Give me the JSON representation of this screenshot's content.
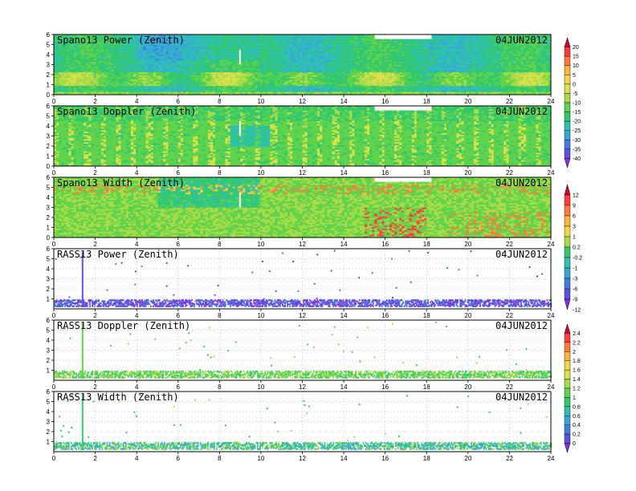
{
  "chart_data": [
    {
      "type": "heatmap",
      "title": "Spano13 Power (Zenith)",
      "date": "04JUN2012",
      "xlim": [
        0,
        24
      ],
      "ylim": [
        0,
        6
      ],
      "xticks": [
        "0",
        "2",
        "4",
        "6",
        "8",
        "10",
        "12",
        "14",
        "16",
        "18",
        "20",
        "22",
        "24"
      ],
      "yticks": [
        "0",
        "1",
        "2",
        "3",
        "4",
        "5",
        "6"
      ],
      "colorbar": "A",
      "field": "power"
    },
    {
      "type": "heatmap",
      "title": "Spano13 Doppler (Zenith)",
      "date": "04JUN2012",
      "xlim": [
        0,
        24
      ],
      "ylim": [
        0,
        6
      ],
      "xticks": [
        "0",
        "2",
        "4",
        "6",
        "8",
        "10",
        "12",
        "14",
        "16",
        "18",
        "20",
        "22",
        "24"
      ],
      "yticks": [
        "0",
        "1",
        "2",
        "3",
        "4",
        "5",
        "6"
      ],
      "colorbar": "A",
      "field": "doppler"
    },
    {
      "type": "heatmap",
      "title": "Spano13 Width (Zenith)",
      "date": "04JUN2012",
      "xlim": [
        0,
        24
      ],
      "ylim": [
        0,
        6
      ],
      "xticks": [
        "0",
        "2",
        "4",
        "6",
        "8",
        "10",
        "12",
        "14",
        "16",
        "18",
        "20",
        "22",
        "24"
      ],
      "yticks": [
        "0",
        "1",
        "2",
        "3",
        "4",
        "5",
        "6"
      ],
      "colorbar": "B",
      "field": "width"
    },
    {
      "type": "heatmap",
      "title": "RASS13 Power (Zenith)",
      "date": "04JUN2012",
      "xlim": [
        0,
        24
      ],
      "ylim": [
        0,
        6
      ],
      "xticks": [
        "0",
        "2",
        "4",
        "6",
        "8",
        "10",
        "12",
        "14",
        "16",
        "18",
        "20",
        "22",
        "24"
      ],
      "yticks": [
        "1",
        "2",
        "3",
        "4",
        "5",
        "6"
      ],
      "colorbar": "B",
      "field": "rass_power"
    },
    {
      "type": "heatmap",
      "title": "RASS13 Doppler (Zenith)",
      "date": "04JUN2012",
      "xlim": [
        0,
        24
      ],
      "ylim": [
        0,
        6
      ],
      "xticks": [
        "0",
        "2",
        "4",
        "6",
        "8",
        "10",
        "12",
        "14",
        "16",
        "18",
        "20",
        "22",
        "24"
      ],
      "yticks": [
        "1",
        "2",
        "3",
        "4",
        "5",
        "6"
      ],
      "colorbar": "C",
      "field": "rass_doppler"
    },
    {
      "type": "heatmap",
      "title": "RASS13 Width (Zenith)",
      "date": "04JUN2012",
      "xlim": [
        0,
        24
      ],
      "ylim": [
        0,
        6
      ],
      "xticks": [
        "0",
        "2",
        "4",
        "6",
        "8",
        "10",
        "12",
        "14",
        "16",
        "18",
        "20",
        "22",
        "24"
      ],
      "yticks": [
        "1",
        "2",
        "3",
        "4",
        "5",
        "6"
      ],
      "colorbar": "C",
      "field": "rass_width"
    }
  ],
  "colorbars": {
    "A": {
      "labels": [
        "20",
        "15",
        "10",
        "5",
        "0",
        "-5",
        "-10",
        "-15",
        "-20",
        "-25",
        "-30",
        "-35",
        "-40"
      ],
      "colors": [
        "#d6003a",
        "#ff3b3b",
        "#ff7a3a",
        "#ffb43a",
        "#f2d64a",
        "#d8e04a",
        "#a8dc46",
        "#5fd44a",
        "#33c96b",
        "#2cc1b1",
        "#34a8d6",
        "#3d7fe0",
        "#5b52e0",
        "#8a2fe0"
      ]
    },
    "B": {
      "labels": [
        "12",
        "9",
        "6",
        "3",
        "1",
        "0.2",
        "-0.2",
        "-1",
        "-3",
        "-6",
        "-9",
        "-12"
      ],
      "colors": [
        "#d6003a",
        "#ff3b3b",
        "#ff7a3a",
        "#ffb43a",
        "#f2d64a",
        "#a8dc46",
        "#33c96b",
        "#2cc1b1",
        "#34a8d6",
        "#3d7fe0",
        "#5b52e0",
        "#8a2fe0"
      ]
    },
    "C": {
      "labels": [
        "2.4",
        "2.2",
        "2",
        "1.8",
        "1.6",
        "1.4",
        "1.2",
        "1",
        "0.8",
        "0.6",
        "0.4",
        "0.2",
        "0"
      ],
      "colors": [
        "#d6003a",
        "#ff3b3b",
        "#ff7a3a",
        "#ffb43a",
        "#f2d64a",
        "#d8e04a",
        "#a8dc46",
        "#5fd44a",
        "#33c96b",
        "#2cc1b1",
        "#34a8d6",
        "#3d7fe0",
        "#5b52e0",
        "#8a2fe0"
      ]
    }
  }
}
